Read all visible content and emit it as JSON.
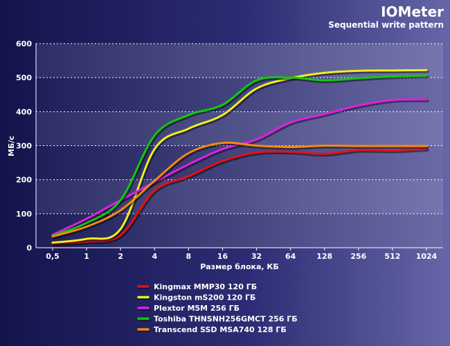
{
  "chart_data": {
    "type": "line",
    "title": "IOMeter",
    "subtitle": "Sequential write pattern",
    "xlabel": "Размер блока, КБ",
    "ylabel": "МБ/с",
    "ylim": [
      0,
      600
    ],
    "yticks": [
      "0",
      "100",
      "200",
      "300",
      "400",
      "500",
      "600"
    ],
    "categories": [
      "0,5",
      "1",
      "2",
      "4",
      "8",
      "16",
      "32",
      "64",
      "128",
      "256",
      "512",
      "1024"
    ],
    "grid": true,
    "legend_position": "bottom",
    "series": [
      {
        "name": "Kingmax MMP30 120 ГБ",
        "color": "#e81010",
        "values": [
          12,
          18,
          37,
          168,
          210,
          255,
          280,
          282,
          276,
          287,
          286,
          291
        ]
      },
      {
        "name": "Kingston mS200 120 ГБ",
        "color": "#f0f020",
        "values": [
          15,
          26,
          55,
          290,
          350,
          390,
          468,
          498,
          514,
          520,
          521,
          522
        ]
      },
      {
        "name": "Plextor M5M 256 ГБ",
        "color": "#e020e0",
        "values": [
          38,
          85,
          140,
          193,
          245,
          290,
          318,
          368,
          393,
          418,
          434,
          436
        ]
      },
      {
        "name": "Toshiba THNSNH256GMCT 256 ГБ",
        "color": "#10c810",
        "values": [
          35,
          73,
          140,
          330,
          390,
          420,
          492,
          500,
          492,
          498,
          504,
          506
        ]
      },
      {
        "name": "Transcend SSD MSA740 128 ГБ",
        "color": "#f58a10",
        "values": [
          33,
          62,
          110,
          197,
          278,
          308,
          300,
          296,
          300,
          299,
          299,
          299
        ]
      }
    ]
  }
}
